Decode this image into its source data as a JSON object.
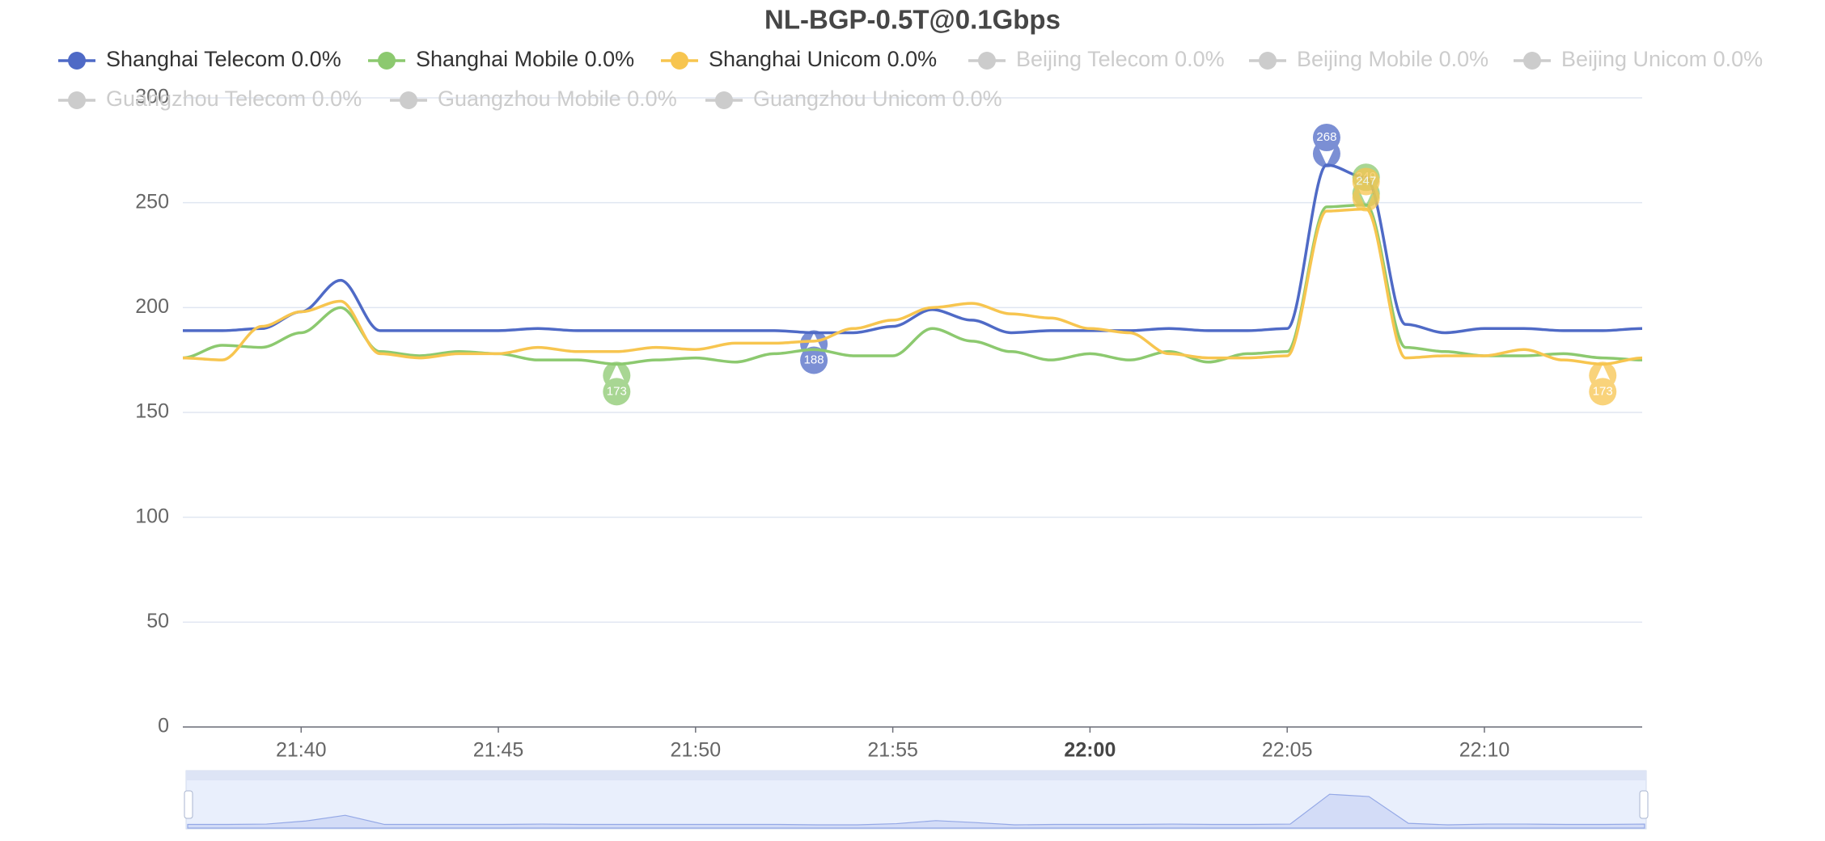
{
  "chart_data": {
    "type": "line",
    "title": "NL-BGP-0.5T@0.1Gbps",
    "x": [
      "21:37",
      "21:38",
      "21:39",
      "21:40",
      "21:41",
      "21:42",
      "21:43",
      "21:44",
      "21:45",
      "21:46",
      "21:47",
      "21:48",
      "21:49",
      "21:50",
      "21:51",
      "21:52",
      "21:53",
      "21:54",
      "21:55",
      "21:56",
      "21:57",
      "21:58",
      "21:59",
      "22:00",
      "22:01",
      "22:02",
      "22:03",
      "22:04",
      "22:05",
      "22:06",
      "22:07",
      "22:08",
      "22:09",
      "22:10",
      "22:11",
      "22:12",
      "22:13",
      "22:14"
    ],
    "xticks": [
      "21:40",
      "21:45",
      "21:50",
      "21:55",
      "22:00",
      "22:05",
      "22:10"
    ],
    "ylim": [
      0,
      300
    ],
    "yticks": [
      0,
      50,
      100,
      150,
      200,
      250,
      300
    ],
    "grid": true,
    "smooth": true,
    "series": [
      {
        "name": "Shanghai Telecom 0.0%",
        "color": "#4f6ac6",
        "visible": true,
        "values": [
          189,
          189,
          190,
          198,
          213,
          189,
          189,
          189,
          189,
          190,
          189,
          189,
          189,
          189,
          189,
          189,
          188,
          188,
          191,
          199,
          194,
          188,
          189,
          189,
          189,
          190,
          189,
          189,
          190,
          268,
          262,
          192,
          188,
          190,
          190,
          189,
          189,
          190
        ]
      },
      {
        "name": "Shanghai Mobile 0.0%",
        "color": "#8cc96f",
        "visible": true,
        "values": [
          176,
          182,
          181,
          188,
          200,
          179,
          177,
          179,
          178,
          175,
          175,
          173,
          175,
          176,
          174,
          178,
          180,
          177,
          177,
          190,
          184,
          179,
          175,
          178,
          175,
          179,
          174,
          178,
          179,
          248,
          249,
          181,
          179,
          177,
          177,
          178,
          176,
          175
        ]
      },
      {
        "name": "Shanghai Unicom 0.0%",
        "color": "#f7c54f",
        "visible": true,
        "values": [
          176,
          175,
          191,
          198,
          203,
          178,
          176,
          178,
          178,
          181,
          179,
          179,
          181,
          180,
          183,
          183,
          184,
          190,
          194,
          200,
          202,
          197,
          195,
          190,
          188,
          178,
          176,
          176,
          177,
          246,
          247,
          176,
          177,
          177,
          180,
          175,
          173,
          176
        ]
      },
      {
        "name": "Beijing Telecom 0.0%",
        "color": "#cccccc",
        "visible": false
      },
      {
        "name": "Beijing Mobile 0.0%",
        "color": "#cccccc",
        "visible": false
      },
      {
        "name": "Beijing Unicom 0.0%",
        "color": "#cccccc",
        "visible": false
      },
      {
        "name": "Guangzhou Telecom 0.0%",
        "color": "#cccccc",
        "visible": false
      },
      {
        "name": "Guangzhou Mobile 0.0%",
        "color": "#cccccc",
        "visible": false
      },
      {
        "name": "Guangzhou Unicom 0.0%",
        "color": "#cccccc",
        "visible": false
      }
    ]
  }
}
